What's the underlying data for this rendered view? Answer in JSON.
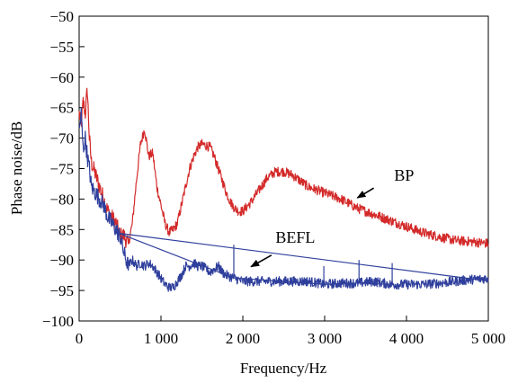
{
  "chart_data": {
    "type": "line",
    "xlabel": "Frequency/Hz",
    "ylabel": "Phase noise/dB",
    "xlim": [
      0,
      5000
    ],
    "ylim": [
      -100,
      -50
    ],
    "x_ticks": [
      0,
      1000,
      2000,
      3000,
      4000,
      5000
    ],
    "x_tick_labels": [
      "0",
      "1 000",
      "2 000",
      "3 000",
      "4 000",
      "5 000"
    ],
    "y_ticks": [
      -100,
      -95,
      -90,
      -85,
      -80,
      -75,
      -70,
      -65,
      -60,
      -55,
      -50
    ],
    "y_tick_labels": [
      "−100",
      "−95",
      "−90",
      "−85",
      "−80",
      "−75",
      "−70",
      "−65",
      "−60",
      "−55",
      "−50"
    ],
    "grid": false,
    "series": [
      {
        "name": "BP",
        "color": "#d42a2a",
        "x": [
          0,
          25,
          50,
          75,
          100,
          125,
          150,
          200,
          250,
          300,
          350,
          400,
          450,
          500,
          550,
          600,
          650,
          700,
          750,
          800,
          850,
          900,
          950,
          1000,
          1050,
          1100,
          1150,
          1200,
          1250,
          1300,
          1350,
          1400,
          1450,
          1500,
          1550,
          1600,
          1650,
          1700,
          1750,
          1800,
          1850,
          1900,
          1950,
          2000,
          2100,
          2200,
          2300,
          2400,
          2500,
          2600,
          2700,
          2800,
          2900,
          3000,
          3200,
          3400,
          3600,
          3800,
          4000,
          4200,
          4400,
          4600,
          4800,
          5000
        ],
        "y": [
          -66,
          -68,
          -64,
          -66,
          -62,
          -70,
          -74,
          -76,
          -78,
          -80,
          -82,
          -83,
          -84,
          -86,
          -86,
          -87.5,
          -84,
          -77,
          -71,
          -68.5,
          -73,
          -72.5,
          -78,
          -81,
          -84,
          -85.5,
          -85,
          -84,
          -81,
          -78,
          -75,
          -73,
          -71.5,
          -71,
          -71.2,
          -71.5,
          -73,
          -75,
          -77,
          -79,
          -80.5,
          -81.5,
          -82,
          -82,
          -80.5,
          -78.5,
          -76.5,
          -75.5,
          -75.5,
          -76,
          -77,
          -78,
          -78.5,
          -79,
          -80,
          -81.5,
          -82.5,
          -83.5,
          -84.5,
          -85.5,
          -86.2,
          -86.8,
          -87,
          -87.3
        ]
      },
      {
        "name": "BEFL",
        "color": "#2f3f9c",
        "x": [
          0,
          25,
          50,
          75,
          100,
          125,
          150,
          200,
          250,
          300,
          350,
          400,
          450,
          500,
          550,
          600,
          650,
          700,
          750,
          800,
          850,
          900,
          950,
          1000,
          1050,
          1100,
          1150,
          1200,
          1250,
          1300,
          1350,
          1400,
          1450,
          1500,
          1550,
          1600,
          1650,
          1700,
          1750,
          1800,
          1900,
          2000,
          2200,
          2400,
          2600,
          2800,
          3000,
          3200,
          3400,
          3600,
          3800,
          4000,
          4200,
          4400,
          4600,
          4800,
          5000
        ],
        "y": [
          -69,
          -66,
          -72,
          -70,
          -73,
          -75,
          -78,
          -79,
          -80,
          -81,
          -83,
          -84,
          -85,
          -86,
          -89,
          -91,
          -90,
          -91,
          -90.5,
          -91,
          -90.5,
          -91,
          -92,
          -93,
          -94,
          -94.5,
          -94.5,
          -93.5,
          -92.5,
          -91,
          -91,
          -90.5,
          -91,
          -91,
          -91.5,
          -92,
          -91.5,
          -91,
          -92,
          -92.5,
          -93,
          -93.5,
          -93.5,
          -93.5,
          -93.5,
          -93.5,
          -94,
          -93.8,
          -93.8,
          -93.5,
          -94,
          -94,
          -94,
          -93.8,
          -93.5,
          -93.2,
          -93
        ]
      }
    ],
    "annotations": [
      {
        "text": "BP",
        "x": 3850,
        "y": -77,
        "arrow_from": [
          3600,
          -78.2
        ],
        "arrow_to": [
          3400,
          -79.8
        ]
      },
      {
        "text": "BEFL",
        "x": 2400,
        "y": -87.2,
        "arrow_from": [
          2350,
          -89.2
        ],
        "arrow_to": [
          2100,
          -91.1
        ]
      }
    ]
  }
}
